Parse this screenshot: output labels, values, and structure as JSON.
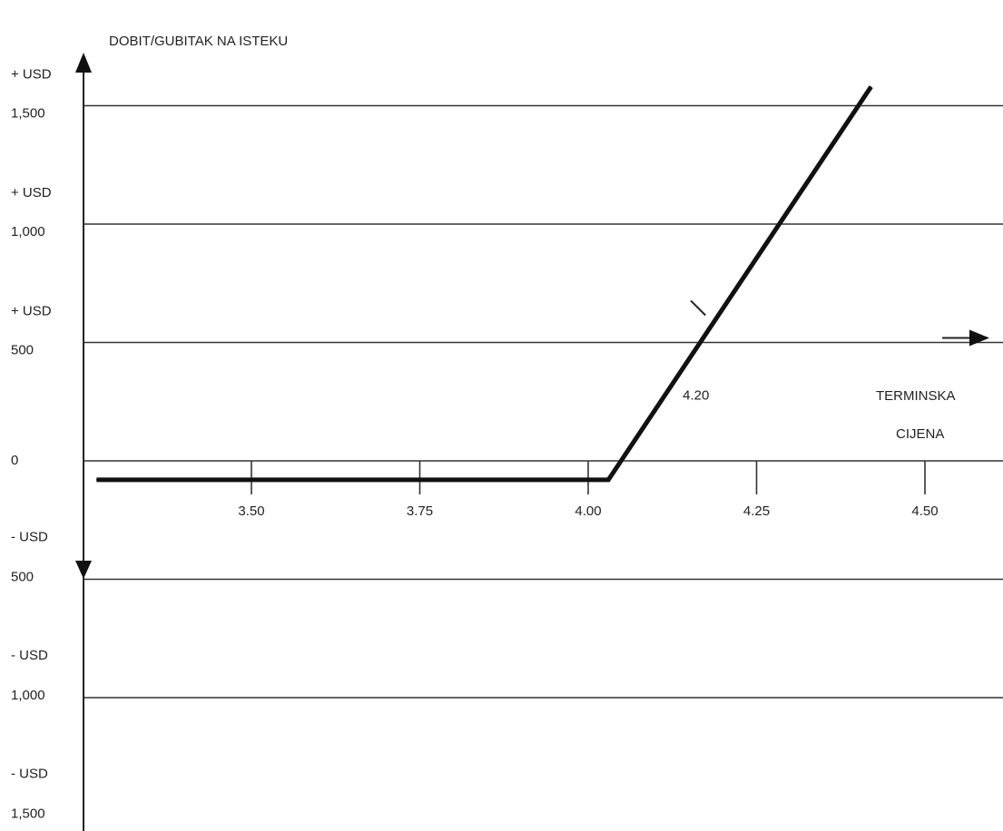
{
  "chart_data": {
    "type": "line",
    "title": "DOBIT/GUBITAK NA ISTEKU",
    "xlabel_lines": [
      "TERMINSKA",
      "CIJENA"
    ],
    "x_ticks": [
      3.5,
      3.75,
      4.0,
      4.25,
      4.5
    ],
    "x_tick_labels": [
      "3.50",
      "3.75",
      "4.00",
      "4.25",
      "4.50"
    ],
    "xlim": [
      3.25,
      4.58
    ],
    "ylim": [
      -1700,
      1700
    ],
    "grid": true,
    "y_gridlines": [
      1500,
      1000,
      500,
      0,
      -500,
      -1000
    ],
    "y_labels": [
      {
        "value": 1500,
        "sign": "+ USD",
        "amount": "1,500"
      },
      {
        "value": 1000,
        "sign": "+ USD",
        "amount": "1,000"
      },
      {
        "value": 500,
        "sign": "+ USD",
        "amount": "500"
      },
      {
        "value": 0,
        "sign": "",
        "amount": "0"
      },
      {
        "value": -500,
        "sign": "- USD",
        "amount": "500"
      },
      {
        "value": -1000,
        "sign": "- USD",
        "amount": "1,000"
      },
      {
        "value": -1500,
        "sign": "- USD",
        "amount": "1,500"
      }
    ],
    "series": [
      {
        "x": [
          3.27,
          4.03,
          4.42
        ],
        "y": [
          -80,
          -80,
          1580
        ]
      }
    ],
    "annotations": [
      {
        "text": "4.20",
        "x": 4.17,
        "y": 500
      }
    ]
  }
}
